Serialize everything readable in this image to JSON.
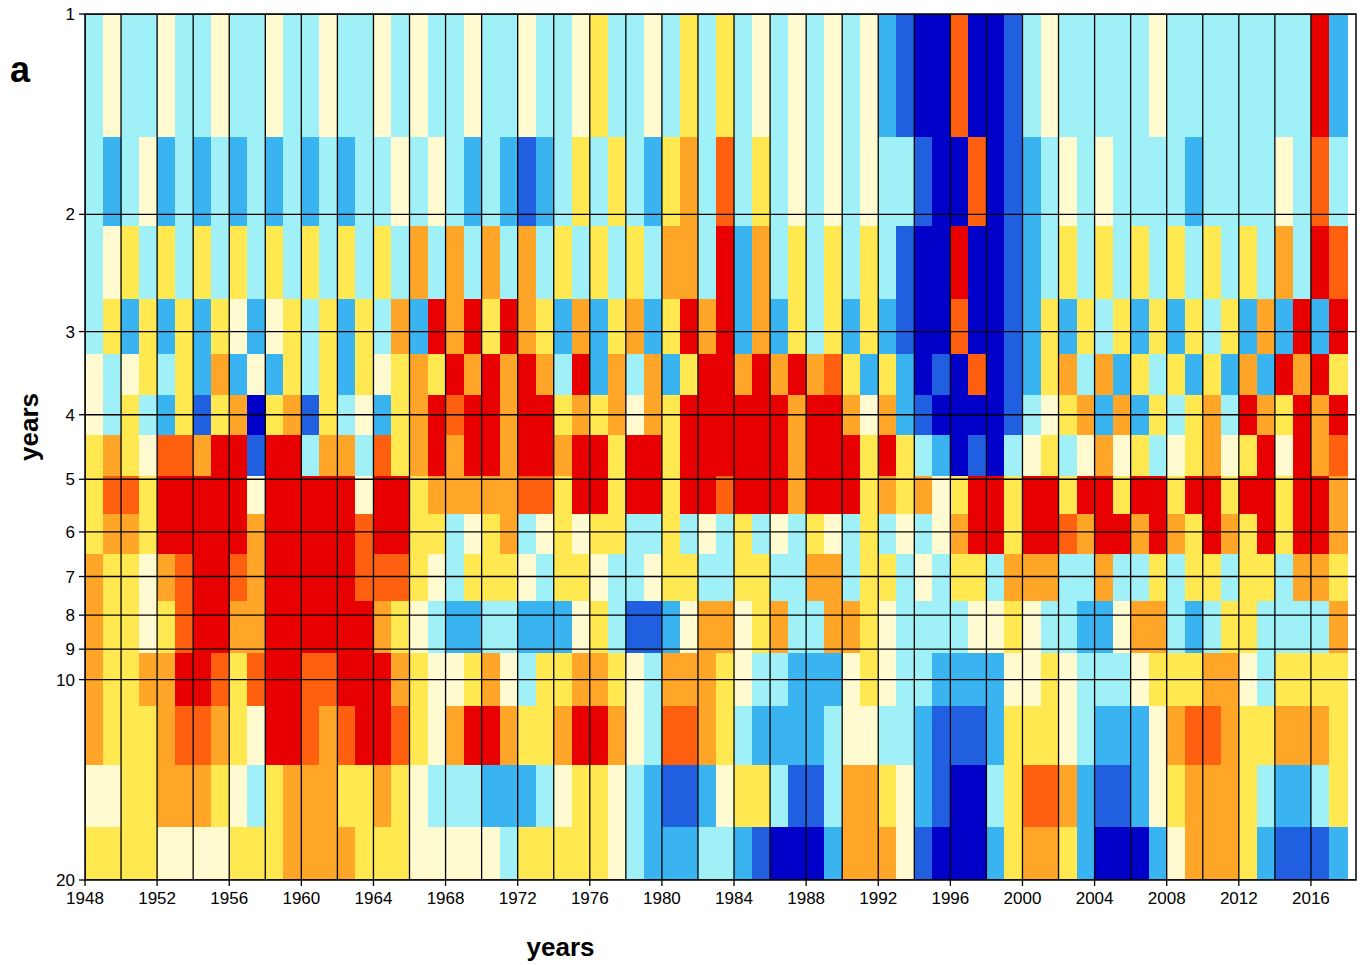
{
  "chart_data": {
    "type": "heatmap",
    "panel_label": "a",
    "x_label": "years",
    "y_label": "years",
    "log": "y",
    "grid": true,
    "xlim": [
      1948,
      2018.5
    ],
    "ylim": [
      1,
      20
    ],
    "xticks": [
      1948,
      1952,
      1956,
      1960,
      1964,
      1968,
      1972,
      1976,
      1980,
      1984,
      1988,
      1992,
      1996,
      2000,
      2004,
      2008,
      2012,
      2016
    ],
    "xgrid": [
      1950,
      1954,
      1958,
      1962,
      1966,
      1970,
      1974,
      1978,
      1982,
      1986,
      1990,
      1994,
      1998,
      2002,
      2006,
      2010,
      2014
    ],
    "yticks": [
      1,
      2,
      3,
      4,
      5,
      6,
      7,
      8,
      9,
      10,
      20
    ],
    "zlim": [
      -4,
      4
    ],
    "colors": [
      "#0000c8",
      "#2060e0",
      "#39b4f0",
      "#a0f0f8",
      "#fffad0",
      "#ffe850",
      "#ffa528",
      "#ff6010",
      "#e80000"
    ],
    "x": [
      1948.5,
      1949.5,
      1950.5,
      1951.5,
      1952.5,
      1953.5,
      1954.5,
      1955.5,
      1956.5,
      1957.5,
      1958.5,
      1959.5,
      1960.5,
      1961.5,
      1962.5,
      1963.5,
      1964.5,
      1965.5,
      1966.5,
      1967.5,
      1968.5,
      1969.5,
      1970.5,
      1971.5,
      1972.5,
      1973.5,
      1974.5,
      1975.5,
      1976.5,
      1977.5,
      1978.5,
      1979.5,
      1980.5,
      1981.5,
      1982.5,
      1983.5,
      1984.5,
      1985.5,
      1986.5,
      1987.5,
      1988.5,
      1989.5,
      1990.5,
      1991.5,
      1992.5,
      1993.5,
      1994.5,
      1995.5,
      1996.5,
      1997.5,
      1998.5,
      1999.5,
      2000.5,
      2001.5,
      2002.5,
      2003.5,
      2004.5,
      2005.5,
      2006.5,
      2007.5,
      2008.5,
      2009.5,
      2010.5,
      2011.5,
      2012.5,
      2013.5,
      2014.5,
      2015.5,
      2016.5,
      2017.5
    ],
    "y": [
      1.3,
      1.8,
      2.4,
      3,
      3.5,
      4,
      4.6,
      5.3,
      6,
      7,
      8.3,
      10,
      12,
      15,
      18.5
    ],
    "z": [
      [
        -1,
        0,
        -1,
        -1,
        0,
        -1,
        -1,
        0,
        -1,
        -1,
        0,
        -1,
        -1,
        0,
        -1,
        -1,
        0,
        -1,
        0,
        -1,
        -1,
        0,
        -1,
        -1,
        0,
        -1,
        -1,
        0,
        1,
        -1,
        -1,
        0,
        -1,
        1,
        -1,
        1,
        -1,
        0,
        -1,
        0,
        -1,
        0,
        -1,
        0,
        -2,
        -3,
        -4,
        -4,
        3,
        -4,
        -4,
        -3,
        -1,
        0,
        -1,
        -1,
        -1,
        -1,
        -1,
        0,
        -1,
        -1,
        -1,
        -1,
        -1,
        -1,
        -1,
        -1,
        4,
        -2
      ],
      [
        -1,
        -2,
        -1,
        0,
        -2,
        -1,
        -2,
        -1,
        -2,
        -1,
        -2,
        -1,
        -2,
        -1,
        -2,
        -1,
        -1,
        0,
        -1,
        0,
        -1,
        -2,
        -1,
        -2,
        -3,
        -2,
        -1,
        1,
        -1,
        1,
        -1,
        -2,
        1,
        2,
        -1,
        3,
        -1,
        1,
        -1,
        0,
        -1,
        0,
        -1,
        0,
        -1,
        -1,
        -3,
        -4,
        -4,
        3,
        -4,
        -3,
        -2,
        -1,
        0,
        -1,
        0,
        -1,
        -1,
        -1,
        -1,
        -2,
        -1,
        -1,
        -1,
        -1,
        0,
        -1,
        3,
        -1
      ],
      [
        -1,
        0,
        1,
        -1,
        1,
        -1,
        1,
        -1,
        1,
        -1,
        1,
        -1,
        1,
        -1,
        1,
        -1,
        1,
        -1,
        2,
        -1,
        2,
        -1,
        2,
        -1,
        2,
        -1,
        1,
        -1,
        1,
        -1,
        1,
        -1,
        2,
        2,
        -1,
        4,
        -2,
        2,
        -1,
        1,
        -1,
        1,
        -1,
        1,
        -1,
        -3,
        -4,
        -4,
        4,
        -4,
        -4,
        -3,
        -2,
        -1,
        1,
        -1,
        1,
        -1,
        1,
        -1,
        1,
        -1,
        1,
        -1,
        1,
        -1,
        2,
        -1,
        4,
        3
      ],
      [
        -1,
        1,
        -2,
        1,
        -2,
        1,
        -2,
        1,
        0,
        -2,
        0,
        1,
        -1,
        1,
        -2,
        1,
        -1,
        2,
        -2,
        4,
        2,
        4,
        1,
        4,
        2,
        1,
        -2,
        2,
        -2,
        1,
        2,
        -2,
        1,
        4,
        2,
        4,
        -2,
        2,
        -2,
        1,
        -1,
        1,
        -2,
        1,
        -2,
        -3,
        -4,
        -4,
        3,
        -4,
        -4,
        -3,
        -2,
        1,
        -2,
        1,
        -1,
        1,
        -2,
        1,
        -2,
        1,
        -1,
        1,
        -2,
        2,
        -2,
        4,
        -2,
        4
      ],
      [
        0,
        -1,
        0,
        1,
        -1,
        1,
        -2,
        2,
        -2,
        0,
        -2,
        1,
        -1,
        1,
        -2,
        1,
        0,
        1,
        2,
        1,
        4,
        2,
        4,
        2,
        4,
        2,
        -1,
        4,
        -2,
        2,
        -1,
        2,
        -2,
        1,
        4,
        4,
        2,
        4,
        2,
        4,
        2,
        3,
        1,
        -2,
        1,
        -2,
        -4,
        -3,
        -4,
        3,
        -4,
        -3,
        -2,
        1,
        2,
        -1,
        2,
        -2,
        1,
        -1,
        1,
        -2,
        1,
        -2,
        2,
        -2,
        4,
        2,
        4,
        1
      ],
      [
        0,
        -1,
        1,
        -1,
        -2,
        1,
        -3,
        1,
        2,
        -4,
        1,
        2,
        -3,
        1,
        -1,
        0,
        -2,
        1,
        2,
        4,
        3,
        4,
        4,
        2,
        4,
        4,
        1,
        2,
        1,
        2,
        0,
        2,
        1,
        4,
        4,
        4,
        4,
        4,
        4,
        2,
        4,
        4,
        2,
        0,
        2,
        -2,
        -3,
        -4,
        -4,
        -4,
        -4,
        -3,
        -1,
        0,
        1,
        2,
        -2,
        2,
        -2,
        1,
        -1,
        1,
        2,
        -1,
        4,
        2,
        1,
        4,
        2,
        4
      ],
      [
        1,
        2,
        1,
        0,
        3,
        3,
        2,
        4,
        4,
        -3,
        4,
        4,
        -1,
        2,
        2,
        -1,
        3,
        1,
        2,
        4,
        2,
        4,
        4,
        2,
        4,
        4,
        2,
        4,
        4,
        1,
        4,
        4,
        1,
        4,
        4,
        4,
        4,
        4,
        4,
        2,
        4,
        4,
        4,
        1,
        4,
        1,
        -1,
        -2,
        -4,
        -3,
        -4,
        -1,
        0,
        1,
        -1,
        0,
        2,
        0,
        1,
        -1,
        0,
        1,
        2,
        0,
        1,
        4,
        0,
        4,
        2,
        3
      ],
      [
        1,
        3,
        3,
        1,
        4,
        4,
        4,
        4,
        4,
        0,
        4,
        4,
        4,
        4,
        4,
        0,
        4,
        4,
        1,
        2,
        2,
        2,
        2,
        2,
        3,
        3,
        1,
        4,
        4,
        1,
        4,
        4,
        1,
        4,
        4,
        3,
        4,
        4,
        4,
        2,
        4,
        4,
        4,
        1,
        2,
        1,
        2,
        0,
        1,
        4,
        4,
        1,
        4,
        4,
        1,
        4,
        4,
        1,
        4,
        4,
        1,
        4,
        4,
        1,
        4,
        4,
        1,
        4,
        4,
        2
      ],
      [
        1,
        2,
        2,
        1,
        4,
        4,
        4,
        4,
        4,
        2,
        4,
        4,
        4,
        4,
        4,
        3,
        4,
        4,
        1,
        1,
        -1,
        0,
        1,
        2,
        -1,
        0,
        1,
        0,
        1,
        1,
        -1,
        -1,
        1,
        -1,
        0,
        -1,
        1,
        -1,
        0,
        -1,
        1,
        0,
        -1,
        1,
        -1,
        0,
        -1,
        0,
        2,
        4,
        4,
        1,
        4,
        4,
        3,
        2,
        4,
        4,
        2,
        4,
        2,
        1,
        4,
        2,
        1,
        4,
        1,
        4,
        4,
        2
      ],
      [
        2,
        1,
        1,
        0,
        2,
        3,
        4,
        4,
        3,
        2,
        4,
        4,
        4,
        4,
        4,
        3,
        3,
        3,
        1,
        0,
        -1,
        1,
        1,
        1,
        0,
        -1,
        1,
        1,
        0,
        -1,
        -1,
        0,
        1,
        1,
        -1,
        -1,
        1,
        1,
        -1,
        -1,
        2,
        2,
        -1,
        1,
        1,
        -1,
        0,
        -1,
        1,
        1,
        -1,
        2,
        2,
        2,
        -1,
        -1,
        2,
        -1,
        -1,
        1,
        -1,
        1,
        1,
        -1,
        1,
        1,
        -1,
        2,
        2,
        1
      ],
      [
        2,
        1,
        1,
        0,
        1,
        3,
        4,
        4,
        2,
        2,
        4,
        4,
        4,
        4,
        4,
        4,
        2,
        1,
        0,
        -1,
        -2,
        -2,
        -1,
        -1,
        -2,
        -2,
        -2,
        0,
        1,
        -1,
        -3,
        -3,
        -2,
        0,
        2,
        2,
        0,
        1,
        2,
        -1,
        -1,
        2,
        2,
        1,
        0,
        -1,
        -1,
        -1,
        -1,
        0,
        0,
        1,
        0,
        -1,
        -1,
        -2,
        -2,
        0,
        2,
        2,
        -1,
        -2,
        -1,
        1,
        1,
        -1,
        -1,
        -1,
        -1,
        2
      ],
      [
        2,
        1,
        1,
        2,
        2,
        4,
        4,
        3,
        1,
        3,
        4,
        4,
        3,
        3,
        4,
        4,
        4,
        2,
        1,
        0,
        0,
        1,
        2,
        0,
        -1,
        1,
        1,
        2,
        2,
        1,
        0,
        -1,
        2,
        2,
        2,
        1,
        0,
        -1,
        -1,
        -2,
        -2,
        -2,
        0,
        1,
        0,
        -1,
        -1,
        -2,
        -2,
        -2,
        -2,
        0,
        0,
        1,
        0,
        -1,
        -1,
        -1,
        0,
        1,
        1,
        1,
        2,
        2,
        0,
        -1,
        1,
        1,
        1,
        1
      ],
      [
        2,
        1,
        1,
        1,
        2,
        3,
        3,
        2,
        1,
        0,
        4,
        4,
        3,
        2,
        3,
        4,
        4,
        3,
        1,
        0,
        2,
        4,
        4,
        2,
        1,
        1,
        2,
        4,
        4,
        2,
        0,
        -1,
        3,
        3,
        2,
        1,
        -1,
        -2,
        -2,
        -2,
        -2,
        -1,
        0,
        0,
        -1,
        -1,
        -2,
        -3,
        -3,
        -3,
        -2,
        1,
        1,
        1,
        0,
        -1,
        -2,
        -2,
        -2,
        0,
        2,
        3,
        3,
        2,
        1,
        1,
        2,
        2,
        2,
        1
      ],
      [
        0,
        0,
        1,
        1,
        2,
        2,
        2,
        1,
        0,
        -1,
        1,
        2,
        2,
        2,
        1,
        1,
        2,
        1,
        0,
        -1,
        -1,
        -1,
        -2,
        -2,
        -2,
        -1,
        0,
        1,
        1,
        0,
        -1,
        -2,
        -3,
        -3,
        -2,
        0,
        1,
        1,
        -1,
        -3,
        -3,
        -1,
        2,
        2,
        1,
        0,
        -2,
        -3,
        -4,
        -4,
        -1,
        1,
        3,
        3,
        2,
        -2,
        -3,
        -3,
        -2,
        0,
        1,
        2,
        2,
        2,
        1,
        -1,
        -2,
        -2,
        -1,
        1
      ],
      [
        1,
        1,
        1,
        1,
        0,
        0,
        0,
        0,
        1,
        1,
        1,
        2,
        2,
        2,
        2,
        1,
        1,
        1,
        0,
        0,
        0,
        0,
        0,
        -1,
        1,
        1,
        1,
        1,
        1,
        0,
        -1,
        -2,
        -2,
        -2,
        -1,
        -1,
        -2,
        -3,
        -4,
        -4,
        -4,
        -2,
        2,
        2,
        2,
        0,
        -3,
        -4,
        -4,
        -4,
        -2,
        1,
        2,
        2,
        1,
        -2,
        -4,
        -4,
        -4,
        -2,
        0,
        2,
        2,
        2,
        1,
        -2,
        -3,
        -3,
        -3,
        -2
      ]
    ]
  }
}
